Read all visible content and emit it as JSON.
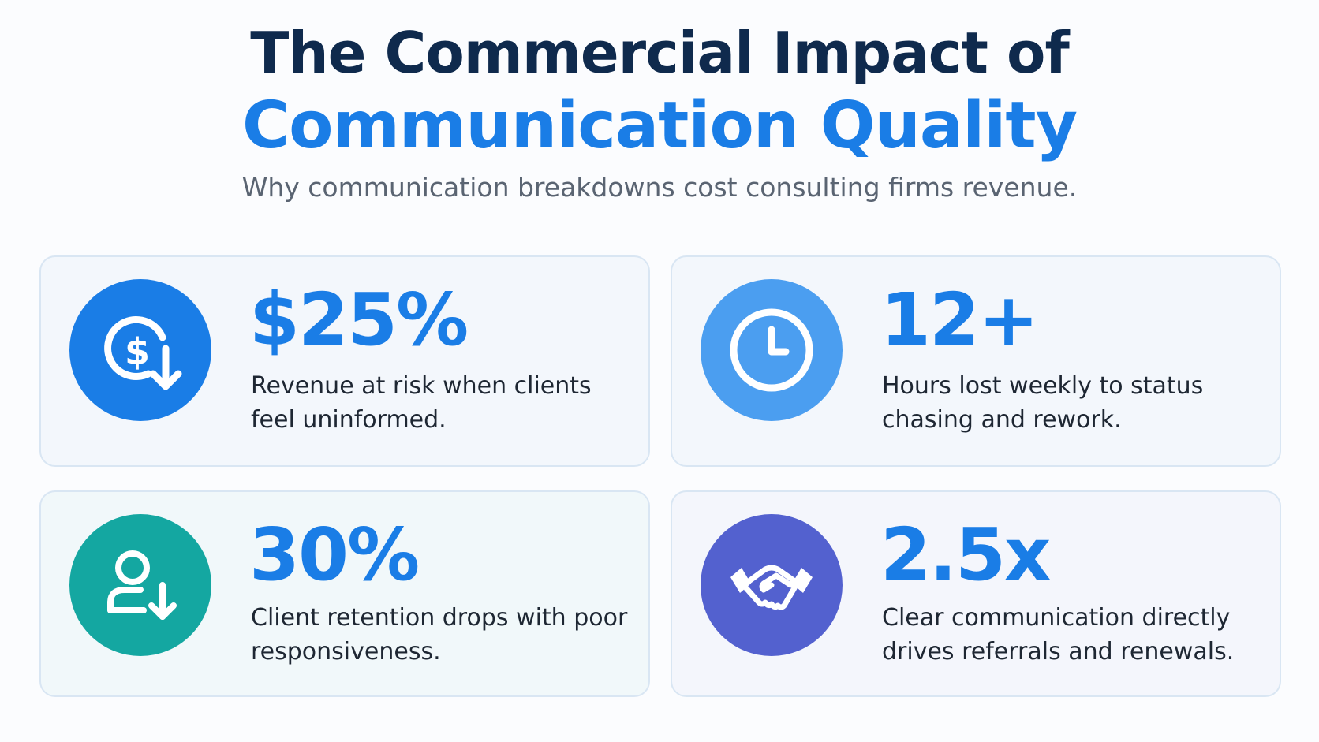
{
  "header": {
    "title_line1": "The Commercial Impact of",
    "title_line2": "Communication Quality",
    "subtitle": "Why communication breakdowns cost consulting firms revenue."
  },
  "cards": [
    {
      "stat": "$25%",
      "description": "Revenue at risk when clients feel uninformed.",
      "icon": "dollar-down-icon",
      "icon_color": "#1a7de6",
      "stat_color": "#1a7de6"
    },
    {
      "stat": "12+",
      "description": "Hours lost weekly to status chasing and rework.",
      "icon": "clock-icon",
      "icon_color": "#4b9ef0",
      "stat_color": "#1a7de6"
    },
    {
      "stat": "30%",
      "description": "Client retention drops with poor responsiveness.",
      "icon": "user-down-icon",
      "icon_color": "#14a7a1",
      "stat_color": "#1a7de6"
    },
    {
      "stat": "2.5x",
      "description": "Clear communication directly drives referrals and renewals.",
      "icon": "handshake-icon",
      "icon_color": "#5361cf",
      "stat_color": "#1a7de6"
    }
  ]
}
